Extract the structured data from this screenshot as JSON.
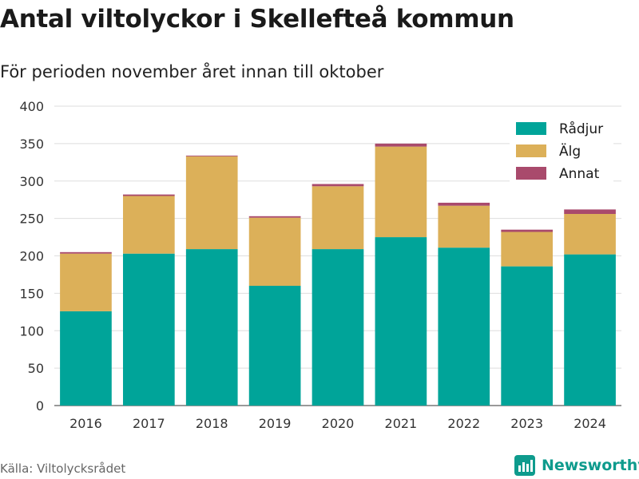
{
  "title": "Antal viltolyckor i Skellefteå kommun",
  "subtitle": "För perioden november året innan till oktober",
  "source": "Källa: Viltolycksrådet",
  "brand": {
    "name": "Newsworthy",
    "icon": "newsworthy-logo-icon",
    "color": "#0e9b8d"
  },
  "chart_data": {
    "type": "bar",
    "stacked": true,
    "categories": [
      "2016",
      "2017",
      "2018",
      "2019",
      "2020",
      "2021",
      "2022",
      "2023",
      "2024"
    ],
    "series": [
      {
        "name": "Rådjur",
        "color": "#00a499",
        "values": [
          126,
          203,
          209,
          160,
          209,
          225,
          211,
          186,
          202
        ]
      },
      {
        "name": "Älg",
        "color": "#dcb059",
        "values": [
          77,
          77,
          124,
          91,
          84,
          121,
          56,
          46,
          54
        ]
      },
      {
        "name": "Annat",
        "color": "#a94a6c",
        "values": [
          2,
          2,
          1,
          2,
          3,
          4,
          4,
          3,
          6
        ]
      }
    ],
    "ylim": [
      0,
      400
    ],
    "yticks": [
      0,
      50,
      100,
      150,
      200,
      250,
      300,
      350,
      400
    ],
    "grid": true,
    "legend_position": "top-right"
  }
}
